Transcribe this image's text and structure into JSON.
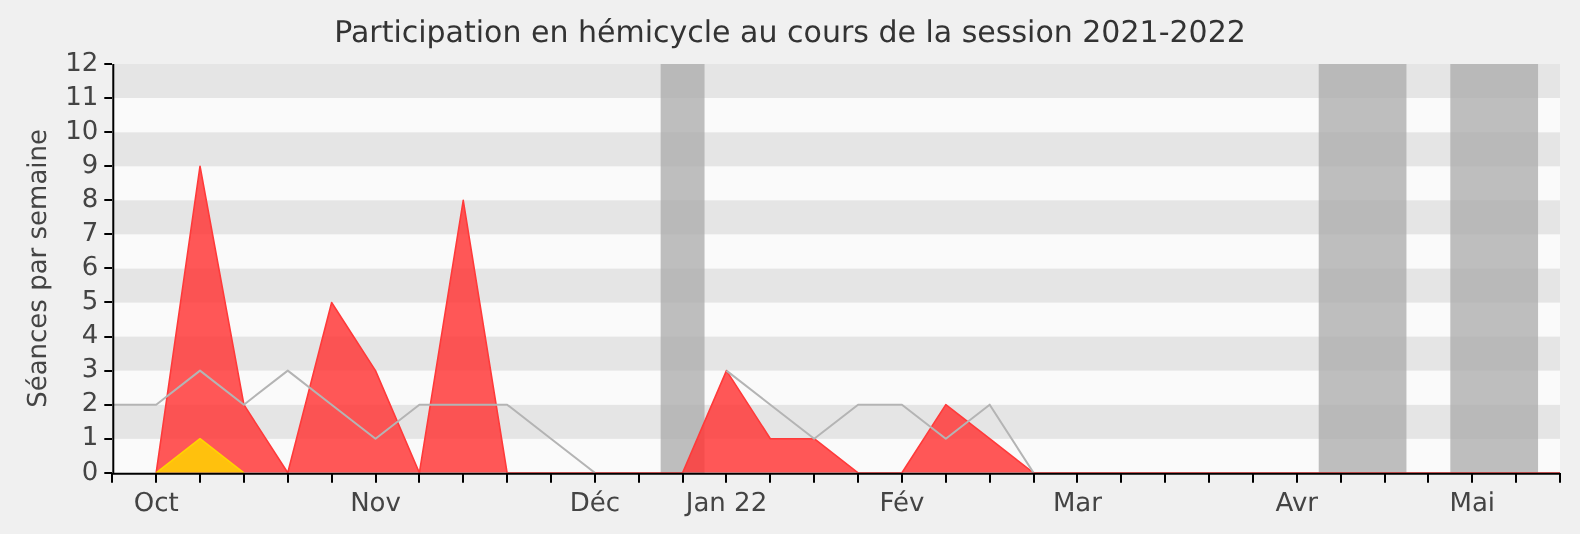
{
  "chart_data": {
    "type": "area",
    "title": "Participation en hémicycle au cours de la session 2021-2022",
    "ylabel": "Séances par semaine",
    "x": [
      "2021-10-04",
      "2021-10-11",
      "2021-10-18",
      "2021-10-25",
      "2021-11-01",
      "2021-11-08",
      "2021-11-15",
      "2021-11-22",
      "2021-11-29",
      "2021-12-06",
      "2021-12-13",
      "2021-12-20",
      "2021-12-27",
      "2022-01-03",
      "2022-01-10",
      "2022-01-17",
      "2022-01-24",
      "2022-01-31",
      "2022-02-07",
      "2022-02-14",
      "2022-02-21",
      "2022-02-28",
      "2022-03-07",
      "2022-03-14",
      "2022-03-21",
      "2022-03-28",
      "2022-04-04",
      "2022-04-11",
      "2022-04-18",
      "2022-04-25",
      "2022-05-02",
      "2022-05-09",
      "2022-05-16",
      "2022-05-23"
    ],
    "xlim": [
      "2021-10-04",
      "2022-05-23"
    ],
    "xticks": [
      {
        "value": "2021-10-04",
        "label": null
      },
      {
        "value": "2021-10-11",
        "label": "Oct"
      },
      {
        "value": "2021-10-18",
        "label": null
      },
      {
        "value": "2021-10-25",
        "label": null
      },
      {
        "value": "2021-11-01",
        "label": null
      },
      {
        "value": "2021-11-08",
        "label": null
      },
      {
        "value": "2021-11-15",
        "label": "Nov"
      },
      {
        "value": "2021-11-22",
        "label": null
      },
      {
        "value": "2021-11-29",
        "label": null
      },
      {
        "value": "2021-12-06",
        "label": null
      },
      {
        "value": "2021-12-13",
        "label": null
      },
      {
        "value": "2021-12-20",
        "label": "Déc"
      },
      {
        "value": "2021-12-27",
        "label": null
      },
      {
        "value": "2022-01-03",
        "label": null
      },
      {
        "value": "2022-01-10",
        "label": "Jan 22"
      },
      {
        "value": "2022-01-17",
        "label": null
      },
      {
        "value": "2022-01-24",
        "label": null
      },
      {
        "value": "2022-01-31",
        "label": null
      },
      {
        "value": "2022-02-07",
        "label": "Fév"
      },
      {
        "value": "2022-02-14",
        "label": null
      },
      {
        "value": "2022-02-21",
        "label": null
      },
      {
        "value": "2022-02-28",
        "label": null
      },
      {
        "value": "2022-03-07",
        "label": "Mar"
      },
      {
        "value": "2022-03-14",
        "label": null
      },
      {
        "value": "2022-03-21",
        "label": null
      },
      {
        "value": "2022-03-28",
        "label": null
      },
      {
        "value": "2022-04-04",
        "label": null
      },
      {
        "value": "2022-04-11",
        "label": "Avr"
      },
      {
        "value": "2022-04-18",
        "label": null
      },
      {
        "value": "2022-04-25",
        "label": null
      },
      {
        "value": "2022-05-02",
        "label": null
      },
      {
        "value": "2022-05-09",
        "label": "Mai"
      },
      {
        "value": "2022-05-16",
        "label": null
      },
      {
        "value": "2022-05-23",
        "label": null
      }
    ],
    "ylim": [
      0,
      12
    ],
    "yticks": [
      0,
      1,
      2,
      3,
      4,
      5,
      6,
      7,
      8,
      9,
      10,
      11,
      12
    ],
    "series": [
      {
        "type": "line",
        "color": "#b4b4b4",
        "values": [
          2,
          2,
          3,
          2,
          3,
          2,
          1,
          2,
          2,
          2,
          1,
          0,
          null,
          null,
          3,
          2,
          1,
          2,
          2,
          1,
          2,
          0,
          null,
          null,
          null,
          null,
          null,
          null,
          null,
          null,
          null,
          null,
          null,
          null
        ]
      },
      {
        "color": "#ff3a3a",
        "values": [
          null,
          0,
          9,
          2,
          0,
          5,
          3,
          0,
          8,
          0,
          0,
          0,
          0,
          0,
          3,
          1,
          1,
          0,
          0,
          2,
          1,
          0,
          0,
          0,
          0,
          0,
          0,
          0,
          0,
          0,
          0,
          0,
          0,
          0
        ]
      },
      {
        "color": "#ffd400",
        "values": [
          null,
          0,
          1,
          0,
          null,
          null,
          null,
          null,
          null,
          null,
          null,
          null,
          null,
          null,
          null,
          null,
          null,
          null,
          null,
          null,
          null,
          null,
          null,
          null,
          null,
          null,
          null,
          null,
          null,
          null,
          null,
          null,
          null,
          null
        ]
      }
    ],
    "bands": [
      {
        "axis": "x",
        "from": "2021-12-30T12:00",
        "to": "2022-01-06T12:00",
        "color": "#aaaaaa"
      },
      {
        "axis": "x",
        "from": "2022-04-14T12:00",
        "to": "2022-04-28T12:00",
        "color": "#aaaaaa"
      },
      {
        "axis": "x",
        "from": "2022-05-05T12:00",
        "to": "2022-05-19T12:00",
        "color": "#aaaaaa"
      }
    ]
  }
}
